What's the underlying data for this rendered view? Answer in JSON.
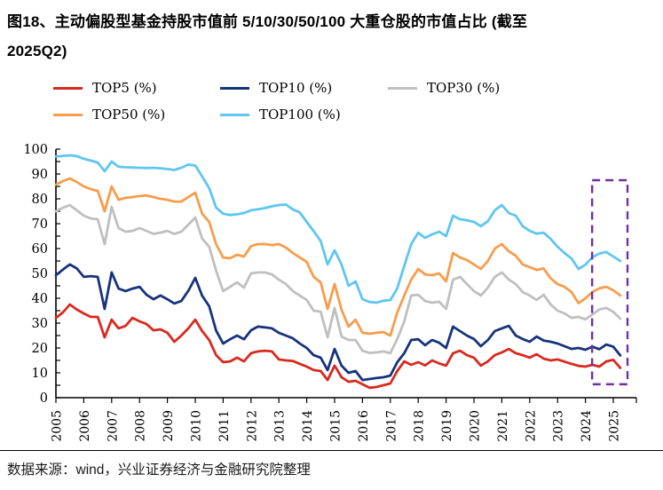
{
  "title": {
    "line1": "图18、主动偏股型基金持股市值前 5/10/30/50/100 大重仓股的市值占比 (截至",
    "line2": "2025Q2)"
  },
  "source_note": "数据来源：wind，兴业证券经济与金融研究院整理",
  "colors": {
    "top5": "#d9291f",
    "top10": "#16337c",
    "top30": "#bfbfbf",
    "top50": "#f89c4b",
    "top100": "#5ec6f2",
    "highlight_box": "#7030a0",
    "axis": "#000000"
  },
  "chart_data": {
    "type": "line",
    "title": "主动偏股型基金持股市值前 5/10/30/50/100 大重仓股的市值占比",
    "frequency": "quarterly",
    "x_start_label": "2005Q1",
    "x_end_label": "2025Q2",
    "x_tick_labels": [
      "2005",
      "2006",
      "2007",
      "2008",
      "2009",
      "2010",
      "2011",
      "2012",
      "2013",
      "2014",
      "2015",
      "2016",
      "2017",
      "2018",
      "2019",
      "2020",
      "2021",
      "2022",
      "2023",
      "2024",
      "2025"
    ],
    "ylabel": "",
    "ylim": [
      0,
      100
    ],
    "y_major_step": 10,
    "y_minor_step": 5,
    "grid": false,
    "legend_position": "top-left",
    "highlight_box": {
      "x_from_year": 2024.24,
      "x_to_year": 2025.51,
      "value_from": 5.4,
      "value_to": 87.5
    },
    "series": [
      {
        "name": "TOP5  (%)",
        "color": "#d9291f",
        "values": [
          32.1,
          34.3,
          37.5,
          35.5,
          33.9,
          32.5,
          32.5,
          24.3,
          31.4,
          27.9,
          28.9,
          32.1,
          30.7,
          29.6,
          27.1,
          27.5,
          26.1,
          22.5,
          25.0,
          27.9,
          31.4,
          26.8,
          23.2,
          17.1,
          14.3,
          14.6,
          16.1,
          14.6,
          17.9,
          18.6,
          18.9,
          18.6,
          15.4,
          15.0,
          14.8,
          13.6,
          12.5,
          11.1,
          10.7,
          7.1,
          12.9,
          8.2,
          6.4,
          6.8,
          5.4,
          4.0,
          4.3,
          5.0,
          5.7,
          10.7,
          14.6,
          13.2,
          14.3,
          13.0,
          15.0,
          13.8,
          12.9,
          17.9,
          18.9,
          17.1,
          16.1,
          12.9,
          14.6,
          17.1,
          18.2,
          19.6,
          17.9,
          17.1,
          16.1,
          17.5,
          15.7,
          15.0,
          15.4,
          14.5,
          13.6,
          12.8,
          12.5,
          13.2,
          12.5,
          14.6,
          15.2,
          12.0
        ]
      },
      {
        "name": "TOP10  (%)",
        "color": "#16337c",
        "values": [
          49.3,
          51.5,
          53.6,
          52.0,
          48.6,
          48.9,
          48.6,
          35.7,
          50.4,
          43.9,
          42.9,
          43.9,
          44.6,
          41.4,
          39.6,
          41.1,
          39.6,
          37.9,
          38.9,
          43.0,
          48.2,
          41.0,
          36.8,
          27.0,
          21.8,
          23.5,
          25.0,
          23.5,
          27.1,
          28.6,
          28.3,
          27.9,
          26.1,
          25.0,
          23.9,
          21.8,
          20.0,
          17.1,
          16.1,
          11.1,
          19.6,
          12.9,
          10.0,
          10.7,
          7.1,
          7.5,
          7.9,
          8.2,
          8.9,
          14.3,
          17.9,
          23.2,
          23.5,
          21.1,
          23.2,
          22.1,
          20.0,
          28.6,
          26.8,
          25.0,
          23.6,
          20.7,
          23.2,
          26.8,
          27.9,
          28.9,
          25.0,
          23.6,
          22.5,
          24.6,
          23.0,
          22.5,
          21.8,
          20.7,
          19.6,
          20.0,
          19.3,
          20.5,
          19.5,
          21.4,
          20.5,
          17.0
        ]
      },
      {
        "name": "TOP30  (%)",
        "color": "#bfbfbf",
        "values": [
          75.0,
          76.4,
          77.5,
          75.4,
          73.2,
          72.1,
          71.8,
          61.8,
          76.8,
          68.2,
          66.8,
          67.1,
          68.2,
          67.1,
          65.9,
          66.4,
          67.1,
          65.9,
          66.8,
          69.6,
          72.5,
          64.0,
          60.7,
          51.1,
          42.9,
          44.6,
          46.4,
          44.3,
          50.0,
          50.4,
          50.4,
          49.6,
          47.5,
          45.7,
          42.9,
          41.1,
          39.3,
          35.0,
          34.6,
          24.3,
          36.1,
          24.6,
          23.2,
          23.2,
          18.9,
          18.0,
          18.2,
          18.6,
          17.9,
          23.6,
          30.7,
          41.1,
          41.4,
          38.9,
          38.2,
          38.6,
          35.7,
          47.5,
          48.6,
          45.7,
          42.9,
          41.1,
          44.3,
          48.6,
          50.4,
          47.5,
          45.7,
          42.5,
          41.1,
          39.3,
          41.4,
          37.5,
          35.0,
          33.9,
          32.1,
          32.5,
          31.5,
          33.5,
          35.5,
          36.1,
          34.5,
          31.8
        ]
      },
      {
        "name": "TOP50  (%)",
        "color": "#f89c4b",
        "values": [
          85.7,
          87.1,
          88.2,
          86.8,
          85.0,
          83.9,
          83.2,
          75.0,
          85.0,
          79.6,
          80.4,
          80.7,
          81.1,
          81.4,
          80.7,
          80.0,
          79.6,
          78.9,
          78.9,
          80.7,
          82.5,
          74.0,
          70.7,
          61.8,
          56.4,
          56.1,
          57.5,
          56.8,
          61.0,
          61.8,
          61.8,
          61.4,
          61.8,
          60.4,
          58.2,
          56.4,
          54.6,
          48.6,
          46.4,
          35.7,
          45.7,
          35.4,
          28.6,
          31.4,
          26.1,
          25.7,
          26.1,
          26.4,
          25.0,
          34.3,
          41.1,
          47.5,
          51.8,
          49.6,
          49.3,
          50.0,
          46.8,
          58.2,
          56.4,
          55.4,
          53.6,
          51.8,
          55.0,
          60.0,
          61.8,
          58.9,
          57.1,
          53.6,
          52.5,
          51.4,
          52.0,
          48.0,
          45.7,
          44.6,
          42.5,
          38.0,
          40.0,
          42.5,
          44.0,
          44.6,
          43.2,
          41.1
        ]
      },
      {
        "name": "TOP100  (%)",
        "color": "#5ec6f2",
        "values": [
          97.0,
          97.3,
          97.5,
          97.2,
          96.1,
          95.4,
          94.6,
          91.1,
          95.0,
          92.9,
          92.7,
          92.6,
          92.5,
          92.4,
          92.5,
          92.3,
          92.0,
          91.6,
          92.5,
          93.8,
          93.4,
          89.0,
          84.3,
          76.5,
          74.0,
          73.5,
          73.8,
          74.3,
          75.4,
          75.8,
          76.3,
          77.0,
          77.5,
          77.7,
          75.8,
          74.5,
          70.7,
          67.0,
          63.0,
          53.6,
          59.3,
          53.6,
          45.0,
          46.8,
          39.6,
          38.5,
          38.2,
          39.0,
          39.3,
          44.0,
          53.0,
          61.8,
          66.4,
          64.3,
          65.7,
          66.8,
          65.0,
          73.2,
          71.8,
          71.4,
          70.7,
          69.0,
          71.0,
          75.4,
          77.5,
          74.3,
          73.2,
          69.0,
          67.1,
          66.0,
          66.4,
          63.9,
          60.7,
          58.2,
          56.0,
          51.8,
          53.5,
          56.5,
          58.0,
          58.6,
          56.8,
          55.0
        ]
      }
    ]
  }
}
